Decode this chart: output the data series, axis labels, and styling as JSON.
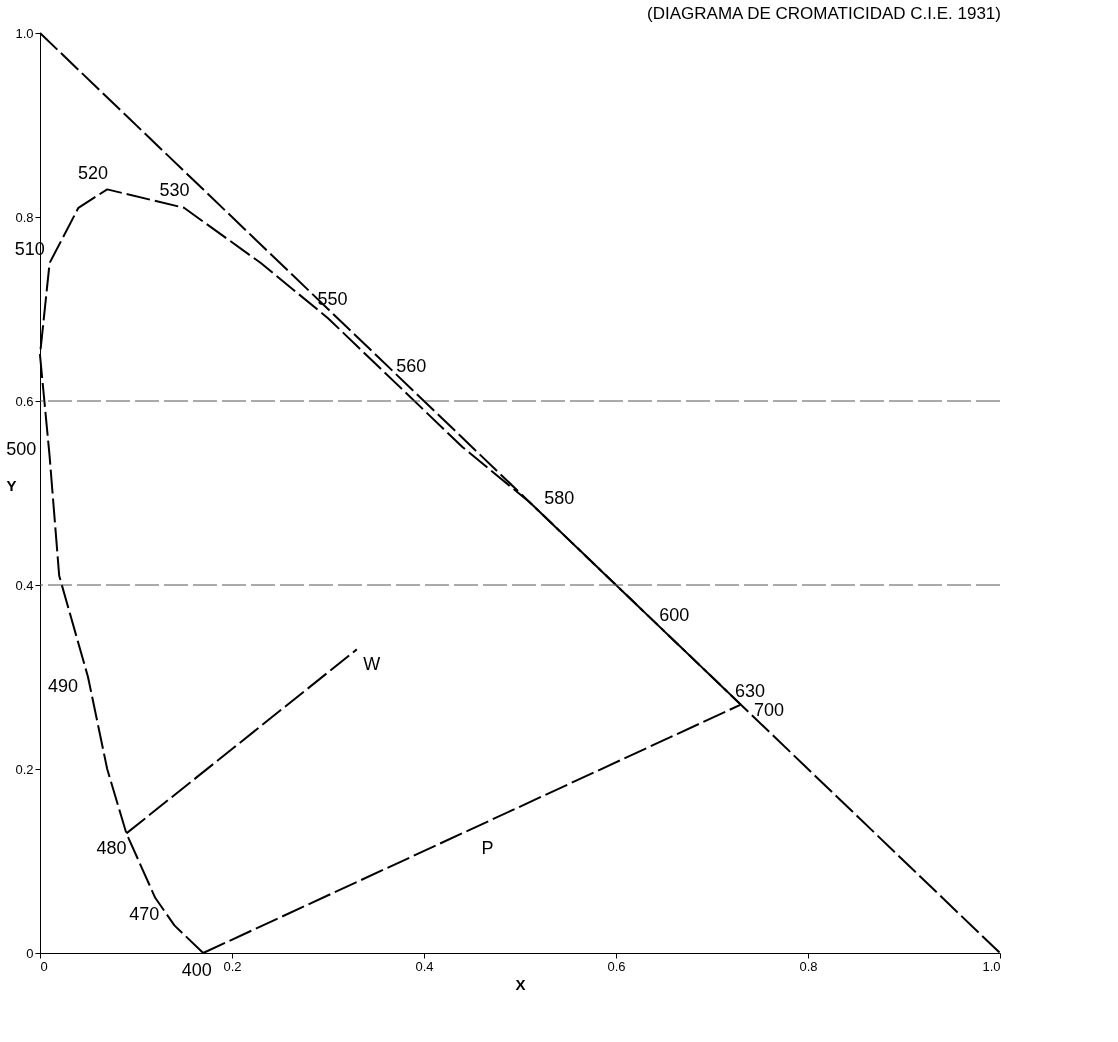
{
  "chart_data": {
    "type": "line",
    "title": "(DIAGRAMA DE CROMATICIDAD C.I.E. 1931)",
    "xlabel": "X",
    "ylabel": "Y",
    "series": [
      {
        "color": "#000000",
        "line_style": "dashed",
        "x": [
          0.17,
          0.14,
          0.12,
          0.09,
          0.07,
          0.05,
          0.02,
          0.01,
          0.0,
          0.01,
          0.04,
          0.07,
          0.15,
          0.23,
          0.3,
          0.37,
          0.44,
          0.51,
          0.58,
          0.63,
          0.67,
          0.71,
          0.73
        ],
        "values": [
          0.0,
          0.03,
          0.06,
          0.13,
          0.2,
          0.3,
          0.41,
          0.54,
          0.65,
          0.75,
          0.81,
          0.83,
          0.81,
          0.75,
          0.69,
          0.62,
          0.55,
          0.49,
          0.42,
          0.37,
          0.33,
          0.29,
          0.27
        ]
      },
      {
        "color": "#000000",
        "line_style": "dashed",
        "x": [
          0.17,
          0.73
        ],
        "values": [
          0.0,
          0.27
        ]
      },
      {
        "color": "#000000",
        "line_style": "dashed",
        "x": [
          0.09,
          0.33
        ],
        "values": [
          0.13,
          0.33
        ]
      },
      {
        "color": "#000000",
        "x": [
          0,
          1
        ],
        "values": [
          1,
          0
        ],
        "line_style": "dashed"
      }
    ],
    "ref_lines": [
      {
        "axis": "y",
        "value": 0.4,
        "line_style": "dashed",
        "color": "#555555"
      },
      {
        "axis": "y",
        "value": 0.6,
        "line_style": "dashed",
        "color": "#555555"
      }
    ],
    "annotations": [
      {
        "text": "400",
        "x": 0.17,
        "y": 0.0
      },
      {
        "text": "470",
        "x": 0.12,
        "y": 0.06
      },
      {
        "text": "480",
        "x": 0.09,
        "y": 0.13
      },
      {
        "text": "490",
        "x": 0.05,
        "y": 0.3
      },
      {
        "text": "500",
        "x": 0.01,
        "y": 0.54
      },
      {
        "text": "510",
        "x": 0.01,
        "y": 0.75
      },
      {
        "text": "520",
        "x": 0.07,
        "y": 0.83
      },
      {
        "text": "530",
        "x": 0.15,
        "y": 0.81
      },
      {
        "text": "550",
        "x": 0.3,
        "y": 0.69
      },
      {
        "text": "560",
        "x": 0.37,
        "y": 0.62
      },
      {
        "text": "580",
        "x": 0.51,
        "y": 0.49
      },
      {
        "text": "600",
        "x": 0.63,
        "y": 0.37
      },
      {
        "text": "630",
        "x": 0.71,
        "y": 0.29
      },
      {
        "text": "700",
        "x": 0.73,
        "y": 0.27
      },
      {
        "text": "W",
        "x": 0.33,
        "y": 0.33
      },
      {
        "text": "P",
        "x": 0.45,
        "y": 0.13
      }
    ],
    "xlim": [
      0,
      1
    ],
    "ylim": [
      0,
      1
    ],
    "xticks": [
      0,
      0.2,
      0.4,
      0.6,
      0.8,
      {
        "value": 1,
        "label": "1.0"
      }
    ],
    "yticks": [
      0,
      0.2,
      0.4,
      0.6,
      0.8,
      {
        "value": 1,
        "label": "1.0"
      }
    ],
    "grid": false
  }
}
